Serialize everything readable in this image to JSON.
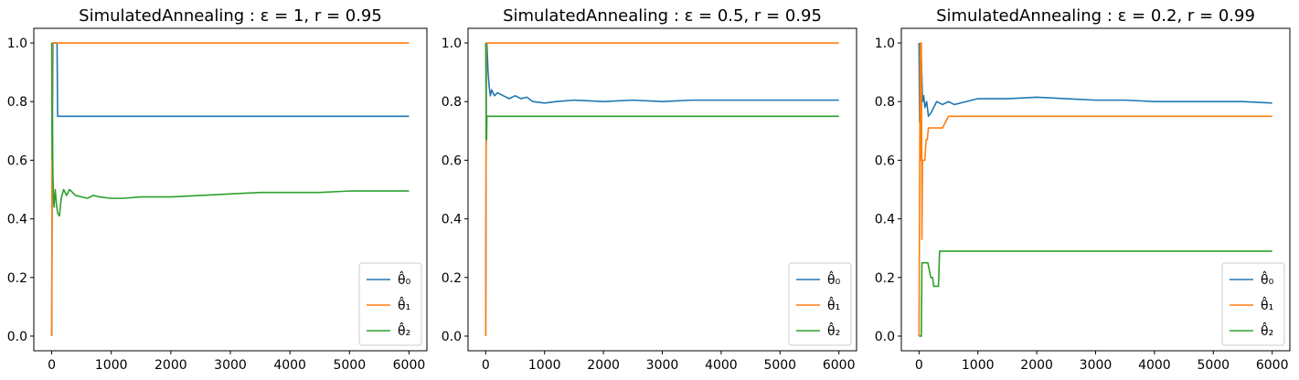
{
  "chart_data": [
    {
      "type": "line",
      "title": "SimulatedAnnealing :  ε = 1, r = 0.95",
      "xlabel": "",
      "ylabel": "",
      "xlim": [
        -300,
        6300
      ],
      "ylim": [
        -0.05,
        1.05
      ],
      "xticks": [
        0,
        1000,
        2000,
        3000,
        4000,
        5000,
        6000
      ],
      "yticks": [
        0.0,
        0.2,
        0.4,
        0.6,
        0.8,
        1.0
      ],
      "xtick_labels": [
        "0",
        "1000",
        "2000",
        "3000",
        "4000",
        "5000",
        "6000"
      ],
      "ytick_labels": [
        "0.0",
        "0.2",
        "0.4",
        "0.6",
        "0.8",
        "1.0"
      ],
      "grid": false,
      "legend_position": "lower-right",
      "series": [
        {
          "name": "θ̂₀",
          "color": "#1f77b4",
          "x": [
            0,
            10,
            20,
            40,
            60,
            80,
            90,
            100,
            6000
          ],
          "y": [
            0.0,
            0.6,
            1.0,
            1.0,
            1.0,
            1.0,
            1.0,
            0.75,
            0.75
          ]
        },
        {
          "name": "θ̂₁",
          "color": "#ff7f0e",
          "x": [
            0,
            10,
            20,
            6000
          ],
          "y": [
            0.0,
            1.0,
            1.0,
            1.0
          ]
        },
        {
          "name": "θ̂₂",
          "color": "#2ca02c",
          "x": [
            0,
            8,
            12,
            20,
            30,
            40,
            60,
            80,
            100,
            130,
            160,
            200,
            250,
            300,
            350,
            400,
            500,
            600,
            700,
            800,
            1000,
            1200,
            1500,
            2000,
            2500,
            3000,
            3500,
            4000,
            4500,
            5000,
            5500,
            6000
          ],
          "y": [
            1.0,
            0.6,
            0.75,
            0.55,
            0.47,
            0.44,
            0.5,
            0.45,
            0.42,
            0.41,
            0.47,
            0.5,
            0.48,
            0.5,
            0.49,
            0.48,
            0.475,
            0.47,
            0.48,
            0.475,
            0.47,
            0.47,
            0.475,
            0.475,
            0.48,
            0.485,
            0.49,
            0.49,
            0.49,
            0.495,
            0.495,
            0.495
          ]
        }
      ]
    },
    {
      "type": "line",
      "title": "SimulatedAnnealing :  ε = 0.5, r = 0.95",
      "xlabel": "",
      "ylabel": "",
      "xlim": [
        -300,
        6300
      ],
      "ylim": [
        -0.05,
        1.05
      ],
      "xticks": [
        0,
        1000,
        2000,
        3000,
        4000,
        5000,
        6000
      ],
      "yticks": [
        0.0,
        0.2,
        0.4,
        0.6,
        0.8,
        1.0
      ],
      "xtick_labels": [
        "0",
        "1000",
        "2000",
        "3000",
        "4000",
        "5000",
        "6000"
      ],
      "ytick_labels": [
        "0.0",
        "0.2",
        "0.4",
        "0.6",
        "0.8",
        "1.0"
      ],
      "grid": false,
      "legend_position": "lower-right",
      "series": [
        {
          "name": "θ̂₀",
          "color": "#1f77b4",
          "x": [
            0,
            10,
            20,
            40,
            60,
            80,
            100,
            150,
            200,
            300,
            400,
            500,
            600,
            700,
            800,
            1000,
            1200,
            1500,
            2000,
            2500,
            3000,
            3500,
            4000,
            4500,
            5000,
            5500,
            6000
          ],
          "y": [
            0.0,
            0.9,
            1.0,
            0.9,
            0.85,
            0.82,
            0.84,
            0.82,
            0.83,
            0.82,
            0.81,
            0.82,
            0.81,
            0.815,
            0.8,
            0.795,
            0.8,
            0.805,
            0.8,
            0.805,
            0.8,
            0.805,
            0.805,
            0.805,
            0.805,
            0.805,
            0.805
          ]
        },
        {
          "name": "θ̂₁",
          "color": "#ff7f0e",
          "x": [
            0,
            10,
            20,
            6000
          ],
          "y": [
            0.0,
            1.0,
            1.0,
            1.0
          ]
        },
        {
          "name": "θ̂₂",
          "color": "#2ca02c",
          "x": [
            0,
            10,
            15,
            20,
            30,
            40,
            50,
            6000
          ],
          "y": [
            1.0,
            0.67,
            0.67,
            0.75,
            0.75,
            0.75,
            0.75,
            0.75
          ]
        }
      ]
    },
    {
      "type": "line",
      "title": "SimulatedAnnealing :  ε = 0.2, r = 0.99",
      "xlabel": "",
      "ylabel": "",
      "xlim": [
        -300,
        6300
      ],
      "ylim": [
        -0.05,
        1.05
      ],
      "xticks": [
        0,
        1000,
        2000,
        3000,
        4000,
        5000,
        6000
      ],
      "yticks": [
        0.0,
        0.2,
        0.4,
        0.6,
        0.8,
        1.0
      ],
      "xtick_labels": [
        "0",
        "1000",
        "2000",
        "3000",
        "4000",
        "5000",
        "6000"
      ],
      "ytick_labels": [
        "0.0",
        "0.2",
        "0.4",
        "0.6",
        "0.8",
        "1.0"
      ],
      "grid": false,
      "legend_position": "lower-right",
      "series": [
        {
          "name": "θ̂₀",
          "color": "#1f77b4",
          "x": [
            0,
            10,
            20,
            30,
            40,
            60,
            80,
            100,
            130,
            160,
            200,
            250,
            300,
            400,
            500,
            600,
            800,
            1000,
            1200,
            1500,
            2000,
            2500,
            3000,
            3500,
            4000,
            4500,
            5000,
            5500,
            6000
          ],
          "y": [
            1.0,
            0.73,
            0.9,
            0.8,
            0.95,
            0.8,
            0.82,
            0.78,
            0.8,
            0.75,
            0.76,
            0.78,
            0.8,
            0.79,
            0.8,
            0.79,
            0.8,
            0.81,
            0.81,
            0.81,
            0.815,
            0.81,
            0.805,
            0.805,
            0.8,
            0.8,
            0.8,
            0.8,
            0.795
          ]
        },
        {
          "name": "θ̂₁",
          "color": "#ff7f0e",
          "x": [
            0,
            20,
            30,
            40,
            50,
            60,
            70,
            80,
            90,
            100,
            120,
            140,
            160,
            180,
            200,
            300,
            400,
            500,
            6000
          ],
          "y": [
            0.0,
            1.0,
            0.6,
            1.0,
            0.33,
            0.6,
            0.6,
            0.6,
            0.6,
            0.6,
            0.67,
            0.67,
            0.71,
            0.71,
            0.71,
            0.71,
            0.71,
            0.75,
            0.75
          ]
        },
        {
          "name": "θ̂₂",
          "color": "#2ca02c",
          "x": [
            0,
            40,
            50,
            80,
            100,
            150,
            200,
            230,
            250,
            300,
            330,
            350,
            6000
          ],
          "y": [
            0.0,
            0.0,
            0.25,
            0.25,
            0.25,
            0.25,
            0.2,
            0.2,
            0.17,
            0.17,
            0.17,
            0.29,
            0.29
          ]
        }
      ]
    }
  ]
}
